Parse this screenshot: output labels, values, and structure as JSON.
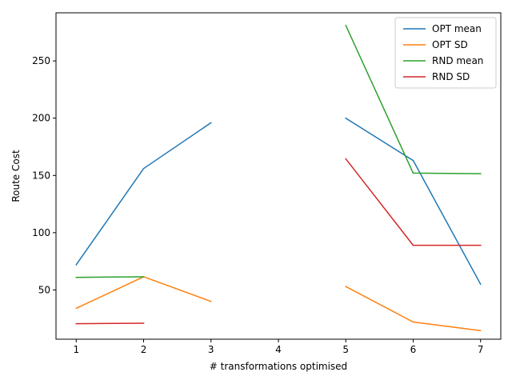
{
  "chart_data": {
    "type": "line",
    "title": "",
    "xlabel": "# transformations optimised",
    "ylabel": "Route Cost",
    "x": [
      1,
      2,
      3,
      4,
      5,
      6,
      7
    ],
    "xlim": [
      0.7,
      7.3
    ],
    "ylim": [
      7,
      292
    ],
    "xticks": [
      1,
      2,
      3,
      4,
      5,
      6,
      7
    ],
    "yticks": [
      50,
      100,
      150,
      200,
      250
    ],
    "grid": false,
    "legend_position": "top-right",
    "series": [
      {
        "name": "OPT mean",
        "color": "#1f77b4",
        "values": [
          72,
          156,
          196,
          null,
          200,
          163,
          55
        ]
      },
      {
        "name": "OPT SD",
        "color": "#ff7f0e",
        "values": [
          34,
          61.5,
          40,
          null,
          53,
          22,
          14.5
        ]
      },
      {
        "name": "RND mean",
        "color": "#2ca02c",
        "values": [
          61,
          61.5,
          null,
          null,
          281,
          152,
          151.5
        ]
      },
      {
        "name": "RND SD",
        "color": "#d62728",
        "values": [
          20.5,
          21,
          null,
          null,
          164.5,
          89,
          89
        ]
      }
    ]
  }
}
